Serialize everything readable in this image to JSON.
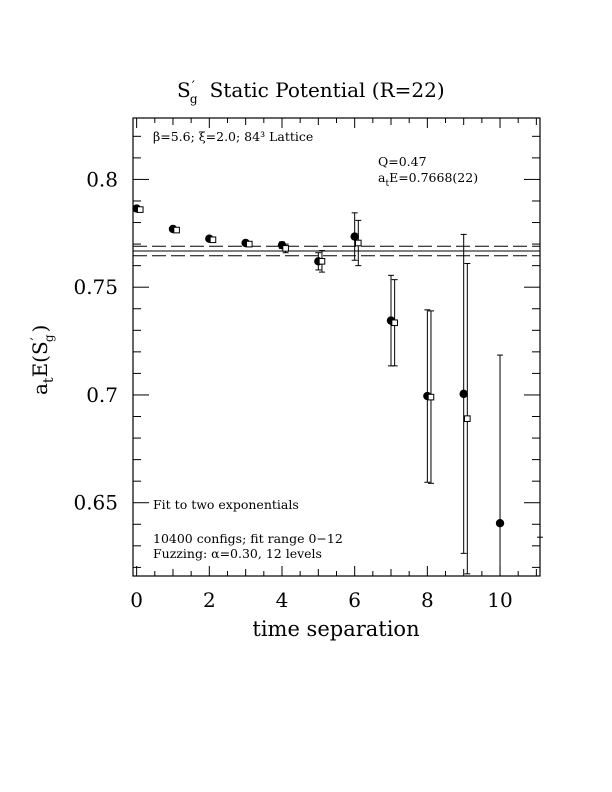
{
  "chart_data": {
    "type": "scatter",
    "title_main": "S",
    "title_prime": "′",
    "title_sub": "g",
    "title_rest": "Static Potential (R=22)",
    "xlabel": "time separation",
    "ylabel_a": "a",
    "ylabel_t": "t",
    "ylabel_E": "E(S",
    "ylabel_prime": "′",
    "ylabel_g": "g",
    "ylabel_close": ")",
    "xlim": [
      -0.1,
      11.1
    ],
    "ylim": [
      0.616,
      0.8285
    ],
    "xticks": [
      0,
      2,
      4,
      6,
      8,
      10
    ],
    "xtick_labels": [
      "0",
      "2",
      "4",
      "6",
      "8",
      "10"
    ],
    "yticks": [
      0.65,
      0.7,
      0.75,
      0.8
    ],
    "ytick_labels": [
      "0.65",
      "0.7",
      "0.75",
      "0.8"
    ],
    "grid": false,
    "annotations": {
      "lattice": "β=5.6; ξ=2.0; 84³ Lattice",
      "q_value": "Q=0.47",
      "energy_a": "a",
      "energy_t": "t",
      "energy_rest": "E=0.7668(22)",
      "fit_text": "Fit to two exponentials",
      "configs_text": "10400 configs; fit range 0−12",
      "fuzzing_text": "Fuzzing: α=0.30, 12 levels"
    },
    "fit": {
      "value": 0.7668,
      "error": 0.0022
    },
    "series": [
      {
        "marker": "filled-circle",
        "x": [
          0,
          1,
          2,
          3,
          4,
          5,
          6,
          7,
          8,
          9,
          10
        ],
        "y": [
          0.7865,
          0.777,
          0.7725,
          0.7705,
          0.7695,
          0.762,
          0.7735,
          0.7345,
          0.6995,
          0.7005,
          0.6405
        ],
        "err": [
          0.0008,
          0.001,
          0.001,
          0.0012,
          0.0015,
          0.004,
          0.011,
          0.021,
          0.04,
          0.074,
          0.078
        ]
      },
      {
        "marker": "open-square",
        "x": [
          0.1,
          1.1,
          2.1,
          3.1,
          4.1,
          5.1,
          6.1,
          7.1,
          8.1,
          9.1,
          11.1
        ],
        "y": [
          0.786,
          0.7765,
          0.772,
          0.77,
          0.768,
          0.762,
          0.7705,
          0.7335,
          0.699,
          0.689,
          0.616
        ],
        "err": [
          0.0008,
          0.001,
          0.001,
          0.0012,
          0.002,
          0.005,
          0.0105,
          0.02,
          0.04,
          0.072,
          0.018
        ]
      }
    ]
  }
}
